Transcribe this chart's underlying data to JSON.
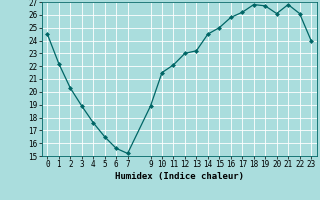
{
  "x": [
    0,
    1,
    2,
    3,
    4,
    5,
    6,
    7,
    9,
    10,
    11,
    12,
    13,
    14,
    15,
    16,
    17,
    18,
    19,
    20,
    21,
    22,
    23
  ],
  "y": [
    24.5,
    22.2,
    20.3,
    18.9,
    17.6,
    16.5,
    15.6,
    15.2,
    18.9,
    21.5,
    22.1,
    23.0,
    23.2,
    24.5,
    25.0,
    25.8,
    26.2,
    26.8,
    26.7,
    26.1,
    26.8,
    26.1,
    24.0
  ],
  "xlabel": "Humidex (Indice chaleur)",
  "ylim": [
    15,
    27
  ],
  "xlim": [
    -0.5,
    23.5
  ],
  "yticks": [
    15,
    16,
    17,
    18,
    19,
    20,
    21,
    22,
    23,
    24,
    25,
    26,
    27
  ],
  "xticks": [
    0,
    1,
    2,
    3,
    4,
    5,
    6,
    7,
    9,
    10,
    11,
    12,
    13,
    14,
    15,
    16,
    17,
    18,
    19,
    20,
    21,
    22,
    23
  ],
  "line_color": "#006666",
  "marker_color": "#006666",
  "bg_color": "#aadddd",
  "grid_color": "#ffffff",
  "label_fontsize": 6.5,
  "tick_fontsize": 5.5
}
